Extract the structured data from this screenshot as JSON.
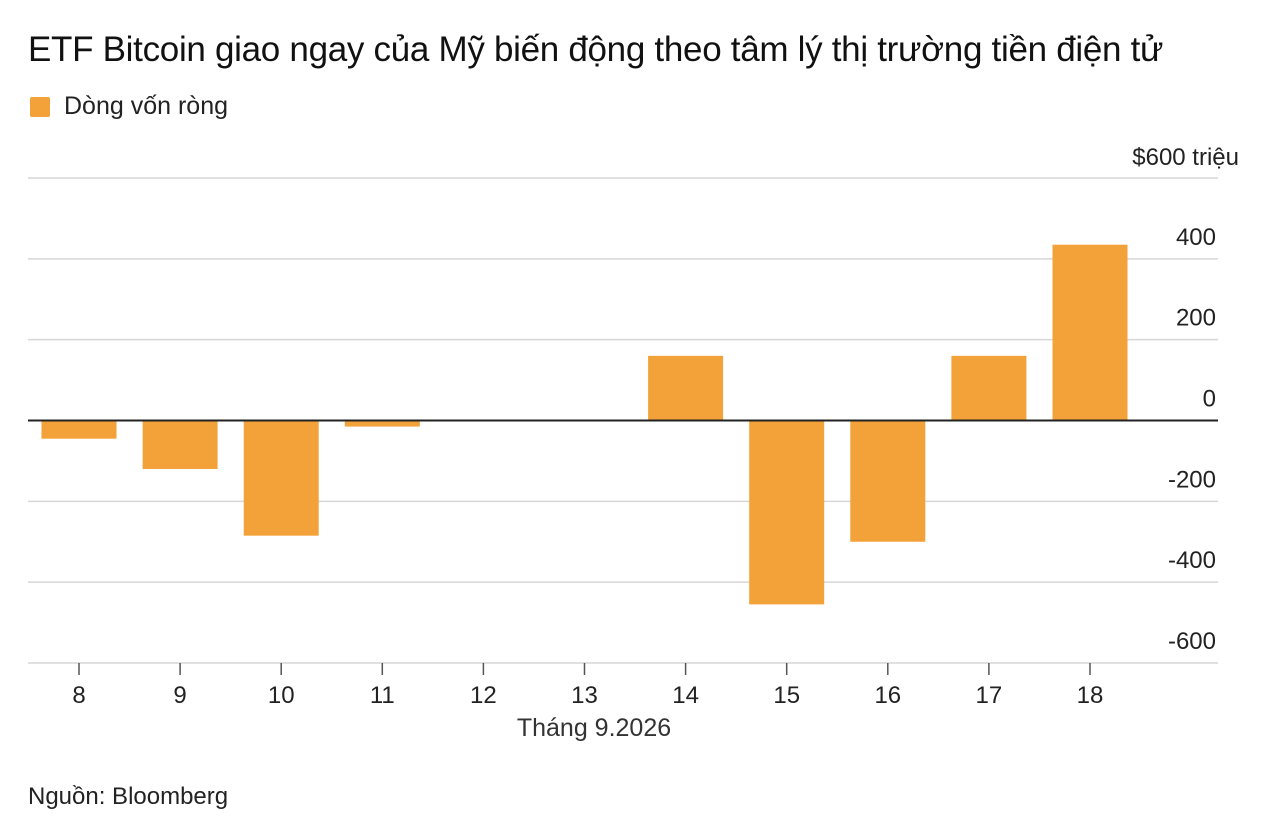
{
  "title": "ETF Bitcoin giao ngay của Mỹ biến động theo tâm lý thị trường tiền điện tử",
  "legend": {
    "label": "Dòng vốn ròng"
  },
  "source": "Nguồn: Bloomberg",
  "colors": {
    "bar": "#f3a23a",
    "grid": "#d6d6d6",
    "zero": "#222222"
  },
  "chart_data": {
    "type": "bar",
    "title": "ETF Bitcoin giao ngay của Mỹ biến động theo tâm lý thị trường tiền điện tử",
    "xlabel": "Tháng 9.2026",
    "ylabel": "",
    "categories": [
      "8",
      "9",
      "10",
      "11",
      "12",
      "13",
      "14",
      "15",
      "16",
      "17",
      "18"
    ],
    "series": [
      {
        "name": "Dòng vốn ròng",
        "values": [
          -45,
          -120,
          -285,
          -15,
          0,
          0,
          160,
          -455,
          -300,
          160,
          435
        ]
      }
    ],
    "ylim": [
      -600,
      600
    ],
    "yticks": [
      600,
      400,
      200,
      0,
      -200,
      -400,
      -600
    ],
    "ytick_labels": [
      "$600 triệu",
      "400",
      "200",
      "0",
      "-200",
      "-400",
      "-600"
    ],
    "grid": true,
    "legend_position": "top-left"
  }
}
